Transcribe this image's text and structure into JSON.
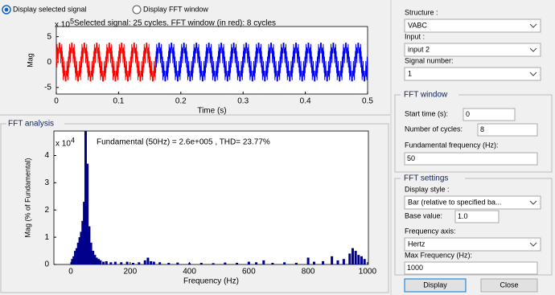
{
  "radio": {
    "options": [
      "Display selected signal",
      "Display FFT window"
    ],
    "selected": 0
  },
  "signal_plot": {
    "type": "line",
    "title": "Selected signal: 25 cycles. FFT window (in red): 8 cycles",
    "multiplier": {
      "base": "x 10",
      "exponent": "5"
    },
    "xlabel": "Time (s)",
    "ylabel": "Mag",
    "xlim": [
      0,
      0.5
    ],
    "xticks": [
      0,
      0.1,
      0.2,
      0.3,
      0.4,
      0.5
    ],
    "ylim": [
      -6.3,
      7
    ],
    "yticks": [
      -5,
      0,
      5
    ],
    "window_color": "#ff0000",
    "color": "#0000ff",
    "components": [
      {
        "frequency": 50,
        "amplitude": 2.6
      },
      {
        "frequency": 250,
        "amplitude": 0.6
      },
      {
        "frequency": 950,
        "amplitude": 1.6
      },
      {
        "frequency": 1050,
        "amplitude": 0.8
      }
    ]
  },
  "fft_analysis": {
    "title": "FFT analysis"
  },
  "fft_plot": {
    "type": "bar",
    "title": "Fundamental (50Hz) = 2.6e+005 , THD= 23.77%",
    "multiplier": {
      "base": "x 10",
      "exponent": "4"
    },
    "xlabel": "Frequency (Hz)",
    "ylabel": "Mag (% of Fundamental)",
    "xlim": [
      -57,
      1003
    ],
    "xticks": [
      0,
      200,
      400,
      600,
      800,
      1000
    ],
    "ylim": [
      0,
      4.9
    ],
    "yticks": [
      0,
      1,
      2,
      3,
      4
    ],
    "color": "#00008b",
    "x": [
      5,
      10,
      15,
      20,
      25,
      30,
      35,
      40,
      45,
      50,
      56,
      62,
      68,
      75,
      81,
      87,
      94,
      100,
      110,
      120,
      135,
      150,
      170,
      190,
      210,
      230,
      250,
      260,
      270,
      280,
      300,
      330,
      360,
      400,
      440,
      480,
      520,
      560,
      600,
      625,
      650,
      680,
      720,
      760,
      800,
      820,
      850,
      880,
      900,
      920,
      940,
      950,
      960,
      970,
      980,
      990
    ],
    "values": [
      0.2,
      0.3,
      0.5,
      0.6,
      0.8,
      1.0,
      1.2,
      1.6,
      2.3,
      4.9,
      3.7,
      1.4,
      0.8,
      0.5,
      0.35,
      0.25,
      0.2,
      0.15,
      0.1,
      0.12,
      0.08,
      0.1,
      0.08,
      0.1,
      0.06,
      0.08,
      0.15,
      0.25,
      0.12,
      0.1,
      0.08,
      0.06,
      0.07,
      0.05,
      0.06,
      0.05,
      0.07,
      0.06,
      0.1,
      0.08,
      0.15,
      0.06,
      0.08,
      0.06,
      0.25,
      0.1,
      0.12,
      0.3,
      0.15,
      0.2,
      0.4,
      0.6,
      0.5,
      0.35,
      0.3,
      0.2
    ]
  },
  "form": {
    "structure": {
      "label": "Structure :",
      "value": "VABC"
    },
    "input": {
      "label": "Input :",
      "value": "input 2"
    },
    "signal_number": {
      "label": "Signal number:",
      "value": "1"
    },
    "fft_window": {
      "title": "FFT window",
      "start_time": {
        "label": "Start time (s):",
        "value": "0"
      },
      "cycles": {
        "label": "Number of cycles:",
        "value": "8"
      },
      "fundamental": {
        "label": "Fundamental frequency (Hz):",
        "value": "50"
      }
    },
    "fft_settings": {
      "title": "FFT settings",
      "display_style": {
        "label": "Display style :",
        "value": "Bar (relative to specified ba..."
      },
      "base_value": {
        "label": "Base value:",
        "value": "1.0"
      },
      "frequency_axis": {
        "label": "Frequency axis:",
        "value": "Hertz"
      },
      "max_frequency": {
        "label": "Max Frequency (Hz):",
        "value": "1000"
      }
    },
    "buttons": {
      "display": "Display",
      "close": "Close"
    }
  }
}
